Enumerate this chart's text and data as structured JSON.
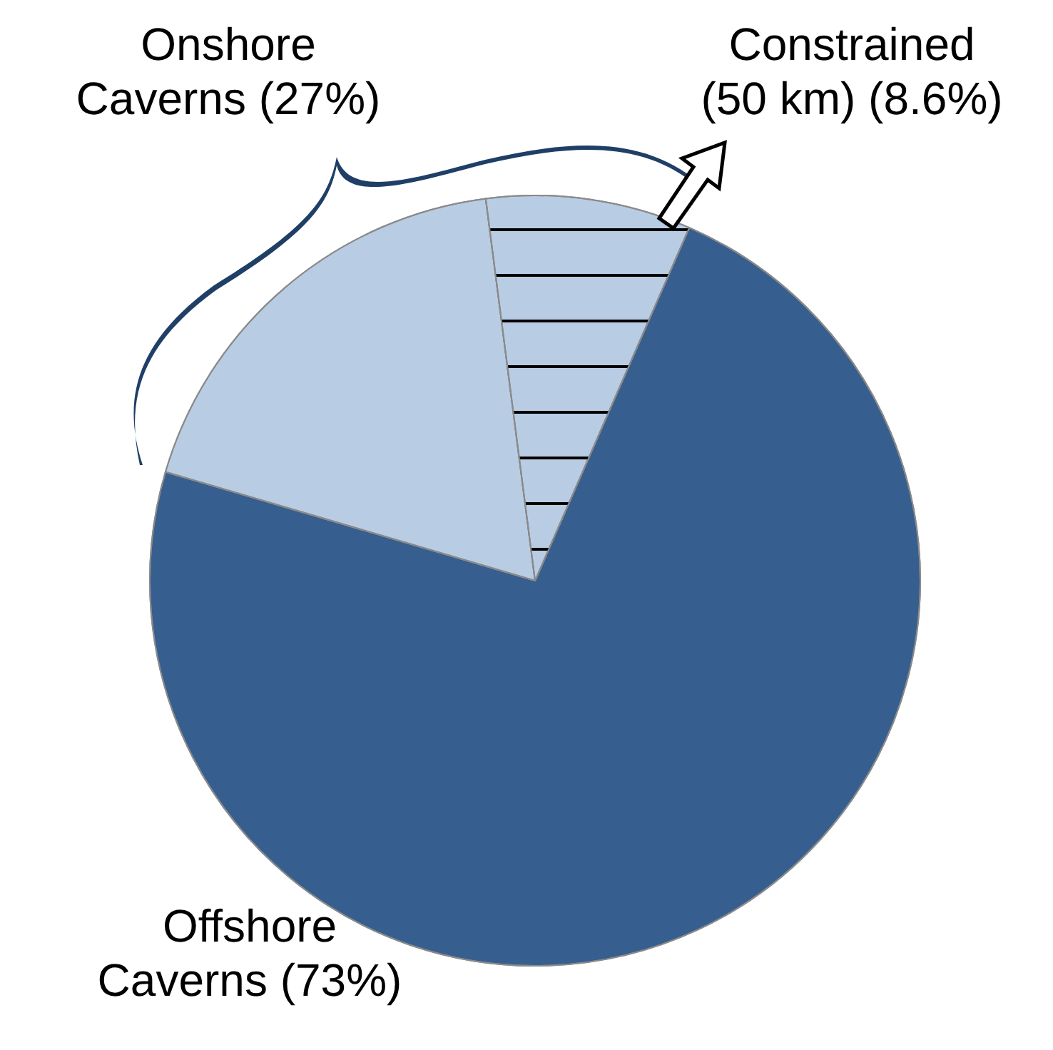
{
  "chart_data": {
    "type": "pie",
    "categories": [
      "Offshore Caverns (73%)",
      null,
      "Constrained (50 km) (8.6%)"
    ],
    "values": [
      73,
      18.4,
      8.6
    ],
    "colors": [
      "#365f8f",
      "#b8cce4",
      "#b8cce4"
    ],
    "annotations": [
      "Onshore Caverns (27%)"
    ]
  }
}
